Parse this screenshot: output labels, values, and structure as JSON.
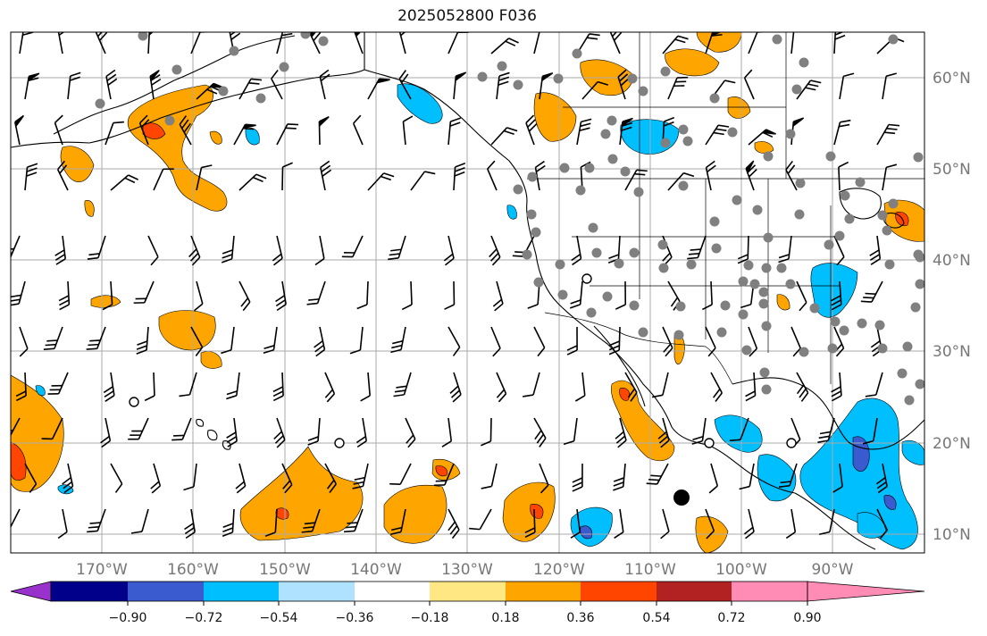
{
  "title": "2025052800 F036",
  "map": {
    "lon_range": [
      -180,
      -80
    ],
    "lat_range": [
      8,
      65
    ],
    "gridlines": true,
    "gridline_color": "#aaaaaa",
    "lon_ticks": [
      "170°W",
      "160°W",
      "150°W",
      "140°W",
      "130°W",
      "120°W",
      "110°W",
      "100°W",
      "90°W"
    ],
    "lat_ticks": [
      "60°N",
      "50°N",
      "40°N",
      "30°N",
      "20°N",
      "10°N"
    ],
    "station_marker_color": "#808080",
    "barb_color": "#000000",
    "coastline_color": "#000000"
  },
  "colorbar": {
    "labels": [
      "−0.90",
      "−0.72",
      "−0.54",
      "−0.36",
      "−0.18",
      "0.18",
      "0.36",
      "0.54",
      "0.72",
      "0.90"
    ],
    "colors": [
      "#9932cc",
      "#00008b",
      "#3a5bd0",
      "#00bfff",
      "#aee2ff",
      "#ffffff",
      "#ffe884",
      "#ffa500",
      "#ff4500",
      "#b22222",
      "#ff8cb4"
    ]
  }
}
